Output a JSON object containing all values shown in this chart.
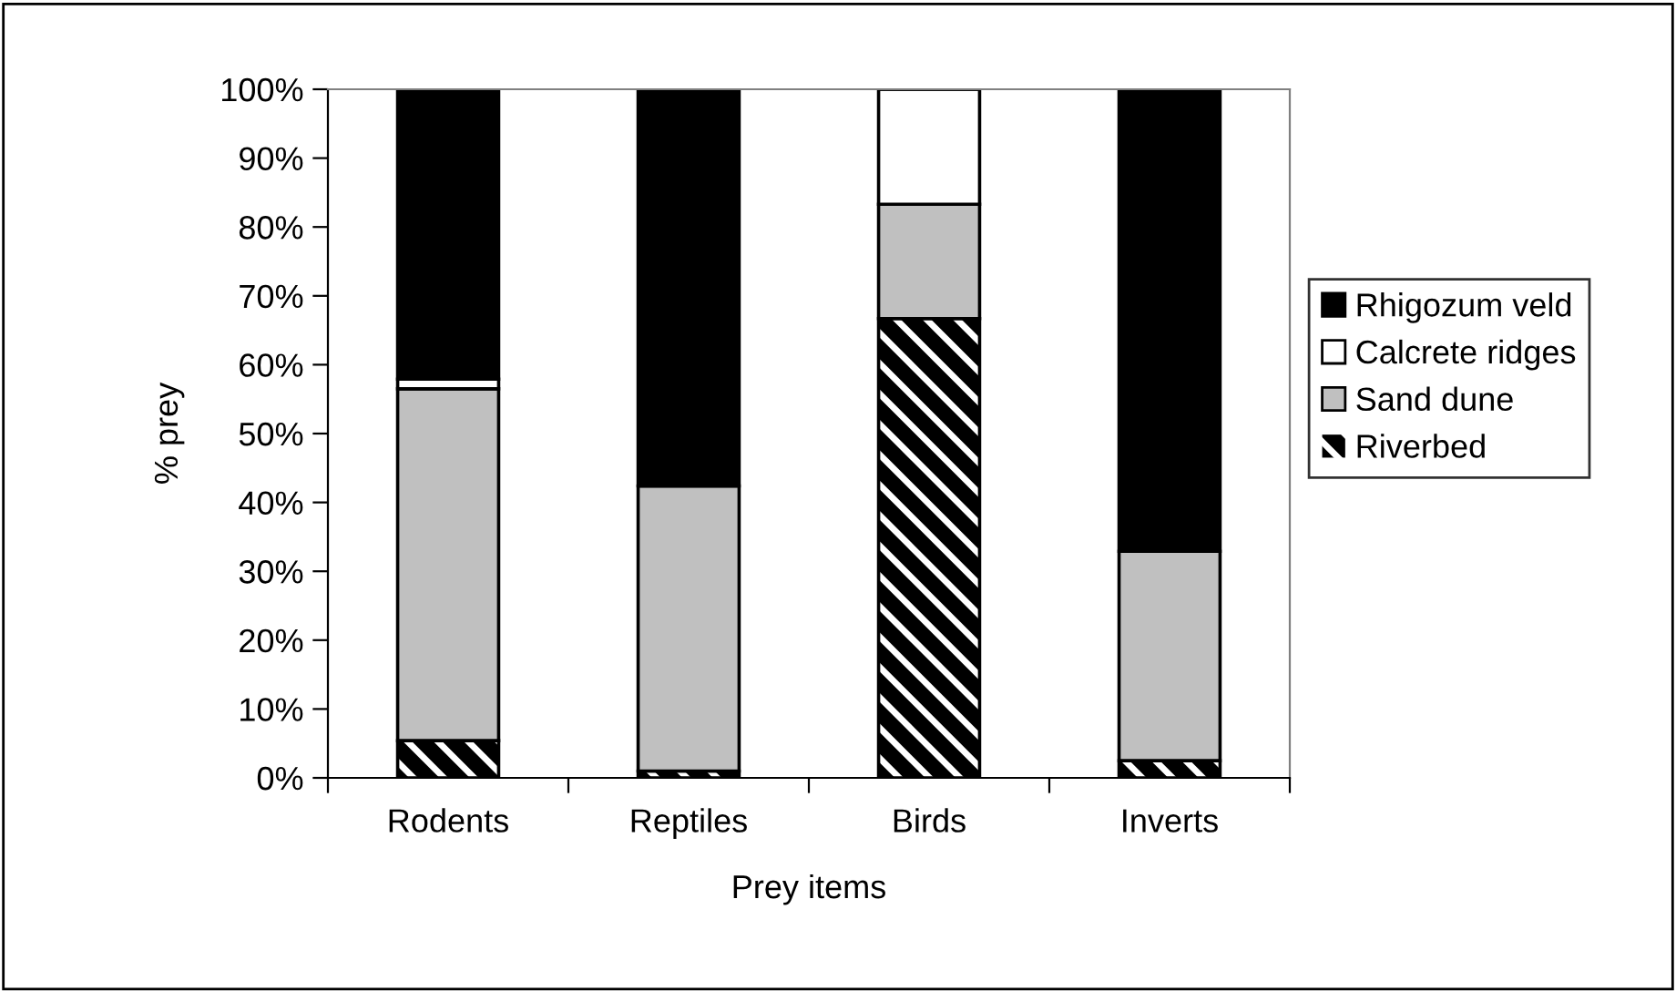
{
  "chart_data": {
    "type": "bar",
    "stacked": true,
    "xlabel": "Prey items",
    "ylabel": "% prey",
    "categories": [
      "Rodents",
      "Reptiles",
      "Birds",
      "Inverts"
    ],
    "series": [
      {
        "name": "Riverbed",
        "color": "#000000",
        "values": [
          5.4,
          1.0,
          66.7,
          2.5
        ]
      },
      {
        "name": "Sand dune",
        "color": "#c0c0c0",
        "values": [
          51.1,
          41.4,
          16.6,
          30.4
        ]
      },
      {
        "name": "Calcrete ridges",
        "color": "#ffffff",
        "values": [
          1.4,
          0,
          16.7,
          0
        ]
      },
      {
        "name": "Rhigozum veld",
        "color": "#000000",
        "values": [
          42.1,
          57.6,
          0,
          67.1
        ]
      }
    ],
    "ylim": [
      0,
      100
    ],
    "yticks": [
      {
        "value": 0,
        "label": "0%"
      },
      {
        "value": 10,
        "label": "10%"
      },
      {
        "value": 20,
        "label": "20%"
      },
      {
        "value": 30,
        "label": "30%"
      },
      {
        "value": 40,
        "label": "40%"
      },
      {
        "value": 50,
        "label": "50%"
      },
      {
        "value": 60,
        "label": "60%"
      },
      {
        "value": 70,
        "label": "70%"
      },
      {
        "value": 80,
        "label": "80%"
      },
      {
        "value": 90,
        "label": "90%"
      },
      {
        "value": 100,
        "label": "100%"
      }
    ],
    "grid": false,
    "legend": "right"
  }
}
